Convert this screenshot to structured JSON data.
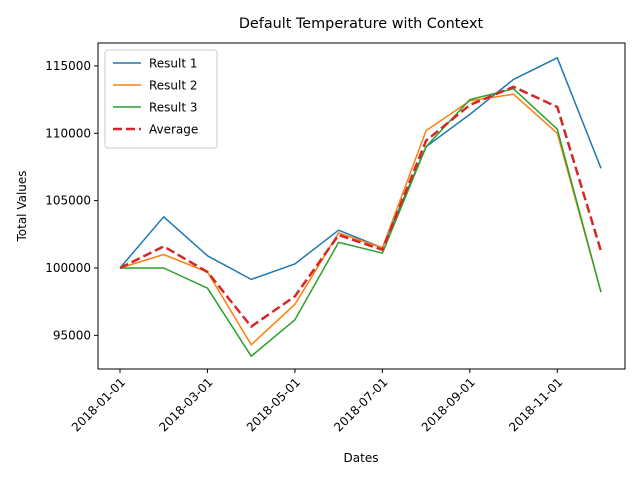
{
  "chart_data": {
    "type": "line",
    "title": "Default Temperature with Context",
    "xlabel": "Dates",
    "ylabel": "Total Values",
    "x": [
      "2018-01-01",
      "2018-02-01",
      "2018-03-01",
      "2018-04-01",
      "2018-05-01",
      "2018-06-01",
      "2018-07-01",
      "2018-08-01",
      "2018-09-01",
      "2018-10-01",
      "2018-11-01",
      "2018-12-01"
    ],
    "x_tick_labels": [
      "2018-01-01",
      "2018-03-01",
      "2018-05-01",
      "2018-07-01",
      "2018-09-01",
      "2018-11-01"
    ],
    "ylim": [
      92500,
      116700
    ],
    "y_ticks": [
      95000,
      100000,
      105000,
      110000,
      115000
    ],
    "y_tick_labels": [
      "95000",
      "100000",
      "105000",
      "110000",
      "115000"
    ],
    "grid": false,
    "legend_position": "top-left",
    "series": [
      {
        "name": "Result 1",
        "color": "#1f77b4",
        "dash": "solid",
        "values": [
          100000,
          103800,
          100900,
          99150,
          100300,
          102800,
          101500,
          109000,
          111400,
          114000,
          115600,
          107400
        ]
      },
      {
        "name": "Result 2",
        "color": "#ff7f0e",
        "dash": "solid",
        "values": [
          100000,
          101000,
          99700,
          94300,
          97300,
          102600,
          101500,
          110200,
          112400,
          112900,
          110000,
          98200
        ]
      },
      {
        "name": "Result 3",
        "color": "#2ca02c",
        "dash": "solid",
        "values": [
          100000,
          100000,
          98500,
          93450,
          96150,
          101900,
          101100,
          109000,
          112500,
          113300,
          110300,
          98200
        ]
      },
      {
        "name": "Average",
        "color": "#d62728",
        "dash": "dashed",
        "values": [
          100000,
          101600,
          99700,
          95650,
          97900,
          102450,
          101350,
          109450,
          112100,
          113450,
          111950,
          101250
        ]
      }
    ]
  }
}
